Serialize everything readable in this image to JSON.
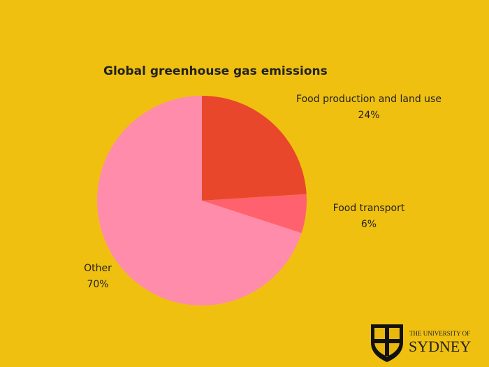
{
  "chart_data": {
    "type": "pie",
    "title": "Global greenhouse gas emissions",
    "categories": [
      "Food production and land use",
      "Food transport",
      "Other"
    ],
    "values": [
      24,
      6,
      70
    ],
    "value_labels": [
      "24%",
      "6%",
      "70%"
    ],
    "colors": [
      "#e8472c",
      "#ff616f",
      "#ff8cab"
    ]
  },
  "logo": {
    "line1": "THE UNIVERSITY OF",
    "line2": "SYDNEY"
  }
}
